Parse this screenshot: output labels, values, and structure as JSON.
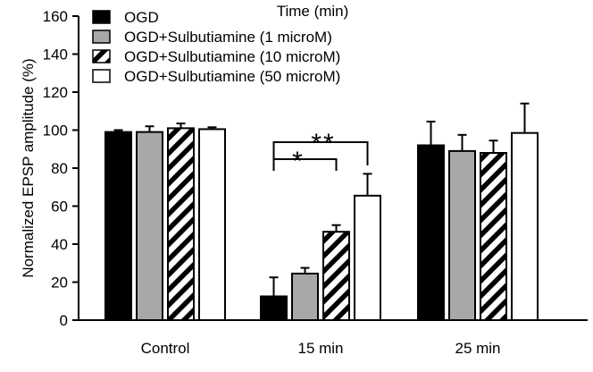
{
  "chart_data": {
    "type": "bar",
    "title": "Time (min)",
    "xlabel": "",
    "ylabel": "Normalized EPSP amplitude (%)",
    "ylim": [
      0,
      160
    ],
    "yticks": [
      0,
      20,
      40,
      60,
      80,
      100,
      120,
      140,
      160
    ],
    "grid": false,
    "legend_position": "top-left",
    "categories": [
      "Control",
      "15 min",
      "25 min"
    ],
    "series": [
      {
        "name": "OGD",
        "fill": "solid-black",
        "values": [
          99,
          12.5,
          92
        ],
        "errors": [
          1,
          10,
          12.5
        ]
      },
      {
        "name": "OGD+Sulbutiamine (1 microM)",
        "fill": "gray",
        "values": [
          99,
          24.5,
          89
        ],
        "errors": [
          3,
          3,
          8.5
        ]
      },
      {
        "name": "OGD+Sulbutiamine (10 microM)",
        "fill": "hatched",
        "values": [
          101,
          46.5,
          88
        ],
        "errors": [
          2.5,
          3.5,
          6.5
        ]
      },
      {
        "name": "OGD+Sulbutiamine (50 microM)",
        "fill": "white",
        "values": [
          100.5,
          65.5,
          98.5
        ],
        "errors": [
          1,
          11.5,
          15.5
        ]
      }
    ],
    "annotations": [
      {
        "text": "*",
        "category": "15 min",
        "from_series": 0,
        "to_series": 2
      },
      {
        "text": "**",
        "category": "15 min",
        "from_series": 0,
        "to_series": 3
      }
    ],
    "colors": {
      "black": "#000000",
      "gray": "#a8a8a8",
      "white": "#ffffff"
    }
  }
}
